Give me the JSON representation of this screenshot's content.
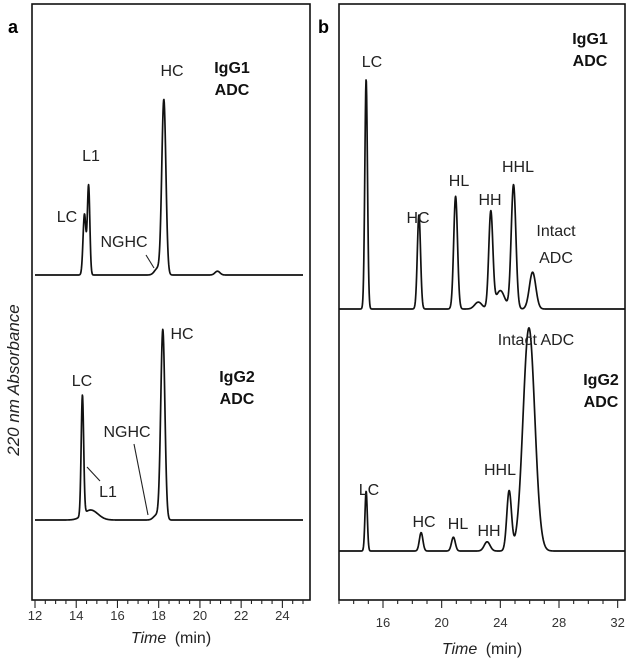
{
  "ylabel": "220 nm Absorbance",
  "chart_data": [
    {
      "type": "line",
      "panel": "a",
      "x_label_italic": "Time",
      "x_label_unit": "(min)",
      "xlim": [
        12,
        25
      ],
      "x_ticks": [
        12,
        14,
        16,
        18,
        20,
        22,
        24
      ],
      "grid": false,
      "series": [
        {
          "name": "IgG1 ADC",
          "label_lines": [
            "IgG1",
            "ADC"
          ],
          "baseline": 0,
          "peaks": [
            {
              "x": 14.4,
              "height": 0.32,
              "width": 0.07
            },
            {
              "x": 14.6,
              "height": 0.47,
              "width": 0.06
            },
            {
              "x": 17.95,
              "height": 0.035,
              "width": 0.15
            },
            {
              "x": 18.25,
              "height": 0.92,
              "width": 0.1
            },
            {
              "x": 20.85,
              "height": 0.02,
              "width": 0.12
            }
          ],
          "annotations": [
            {
              "text": "LC",
              "x": 14.4
            },
            {
              "text": "L1",
              "x": 14.6
            },
            {
              "text": "NGHC",
              "x": 17.95
            },
            {
              "text": "HC",
              "x": 18.25
            }
          ]
        },
        {
          "name": "IgG2 ADC",
          "label_lines": [
            "IgG2",
            "ADC"
          ],
          "baseline": 0,
          "peaks": [
            {
              "x": 14.3,
              "height": 0.6,
              "width": 0.06
            },
            {
              "x": 14.7,
              "height": 0.05,
              "width": 0.35
            },
            {
              "x": 17.9,
              "height": 0.025,
              "width": 0.15
            },
            {
              "x": 18.2,
              "height": 0.95,
              "width": 0.1
            }
          ],
          "annotations": [
            {
              "text": "LC",
              "x": 14.3
            },
            {
              "text": "L1",
              "x": 14.7
            },
            {
              "text": "NGHC",
              "x": 17.9
            },
            {
              "text": "HC",
              "x": 18.2
            }
          ]
        }
      ]
    },
    {
      "type": "line",
      "panel": "b",
      "x_label_italic": "Time",
      "x_label_unit": "(min)",
      "xlim": [
        13,
        32.5
      ],
      "x_ticks": [
        16,
        20,
        24,
        28,
        32
      ],
      "grid": false,
      "series": [
        {
          "name": "IgG1 ADC",
          "label_lines": [
            "IgG1",
            "ADC"
          ],
          "baseline": 0,
          "peaks": [
            {
              "x": 14.85,
              "height": 1.0,
              "width": 0.09
            },
            {
              "x": 18.45,
              "height": 0.41,
              "width": 0.11
            },
            {
              "x": 20.95,
              "height": 0.49,
              "width": 0.13
            },
            {
              "x": 22.5,
              "height": 0.03,
              "width": 0.25
            },
            {
              "x": 23.35,
              "height": 0.42,
              "width": 0.14
            },
            {
              "x": 24.0,
              "height": 0.08,
              "width": 0.3
            },
            {
              "x": 24.9,
              "height": 0.54,
              "width": 0.16
            },
            {
              "x": 26.2,
              "height": 0.16,
              "width": 0.22
            }
          ],
          "annotations": [
            {
              "text": "LC",
              "x": 14.85
            },
            {
              "text": "HC",
              "x": 18.45
            },
            {
              "text": "HL",
              "x": 20.95
            },
            {
              "text": "HH",
              "x": 23.35
            },
            {
              "text": "HHL",
              "x": 24.9
            },
            {
              "text": "Intact",
              "x": 26.2
            },
            {
              "text": "ADC",
              "x": 26.2
            }
          ]
        },
        {
          "name": "IgG2 ADC",
          "label_lines": [
            "IgG2",
            "ADC"
          ],
          "baseline": 0,
          "peaks": [
            {
              "x": 14.85,
              "height": 0.26,
              "width": 0.08
            },
            {
              "x": 18.6,
              "height": 0.08,
              "width": 0.12
            },
            {
              "x": 20.8,
              "height": 0.06,
              "width": 0.13
            },
            {
              "x": 23.1,
              "height": 0.04,
              "width": 0.2
            },
            {
              "x": 24.6,
              "height": 0.26,
              "width": 0.16
            },
            {
              "x": 25.95,
              "height": 0.97,
              "width": 0.4
            }
          ],
          "annotations": [
            {
              "text": "LC",
              "x": 14.85
            },
            {
              "text": "HC",
              "x": 18.6
            },
            {
              "text": "HL",
              "x": 20.8
            },
            {
              "text": "HH",
              "x": 23.1
            },
            {
              "text": "HHL",
              "x": 24.6
            },
            {
              "text": "Intact ADC",
              "x": 25.95
            }
          ]
        }
      ]
    }
  ]
}
